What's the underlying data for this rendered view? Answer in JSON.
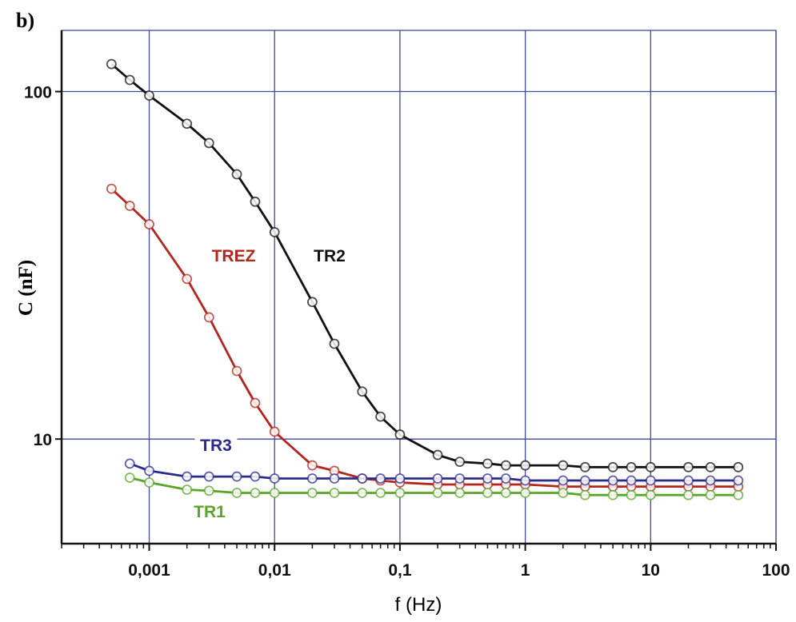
{
  "chart_data": {
    "type": "line",
    "panel_label": "b)",
    "x_label": "f (Hz)",
    "y_label": "C (nF)",
    "x_log": true,
    "y_log": true,
    "grid": true,
    "minor_ticks": true,
    "markers": "open-circle",
    "xlim": [
      0.0002,
      100
    ],
    "ylim": [
      5,
      150
    ],
    "xticks": [
      {
        "value": 0.001,
        "label": "0,001"
      },
      {
        "value": 0.01,
        "label": "0,01"
      },
      {
        "value": 0.1,
        "label": "0,1"
      },
      1,
      10,
      100
    ],
    "yticks": [
      10,
      100
    ],
    "x": [
      0.0005,
      0.0007,
      0.001,
      0.002,
      0.003,
      0.005,
      0.007,
      0.01,
      0.02,
      0.03,
      0.05,
      0.07,
      0.1,
      0.2,
      0.3,
      0.5,
      0.7,
      1,
      2,
      3,
      5,
      7,
      10,
      20,
      30,
      50
    ],
    "series": [
      {
        "name": "TR2",
        "color": "#111111",
        "values": [
          120,
          108,
          97.4,
          80.8,
          71.1,
          57.8,
          48.2,
          39.4,
          24.8,
          18.8,
          13.7,
          11.6,
          10.3,
          9.0,
          8.6,
          8.5,
          8.4,
          8.4,
          8.4,
          8.3,
          8.3,
          8.3,
          8.3,
          8.3,
          8.3,
          8.3
        ]
      },
      {
        "name": "TREZ",
        "color": "#b3261e",
        "values": [
          52.5,
          46.9,
          41.5,
          28.9,
          22.4,
          15.7,
          12.7,
          10.5,
          8.4,
          8.1,
          7.7,
          7.6,
          7.5,
          7.4,
          7.4,
          7.4,
          7.4,
          7.4,
          7.3,
          7.3,
          7.3,
          7.3,
          7.3,
          7.3,
          7.3,
          7.3
        ]
      },
      {
        "name": "TR3",
        "color": "#2b2b8c",
        "values": [
          null,
          8.5,
          8.1,
          7.8,
          7.8,
          7.8,
          7.8,
          7.7,
          7.7,
          7.7,
          7.7,
          7.7,
          7.7,
          7.7,
          7.7,
          7.7,
          7.7,
          7.6,
          7.6,
          7.6,
          7.6,
          7.6,
          7.6,
          7.6,
          7.6,
          7.6
        ]
      },
      {
        "name": "TR1",
        "color": "#5aa52a",
        "values": [
          null,
          7.74,
          7.5,
          7.15,
          7.1,
          7.0,
          7.0,
          7.0,
          7.0,
          7.0,
          7.0,
          7.0,
          7.0,
          7.0,
          7.0,
          7.0,
          7.0,
          7.0,
          7.0,
          6.9,
          6.9,
          6.9,
          6.9,
          6.9,
          6.9,
          6.9
        ]
      }
    ]
  }
}
